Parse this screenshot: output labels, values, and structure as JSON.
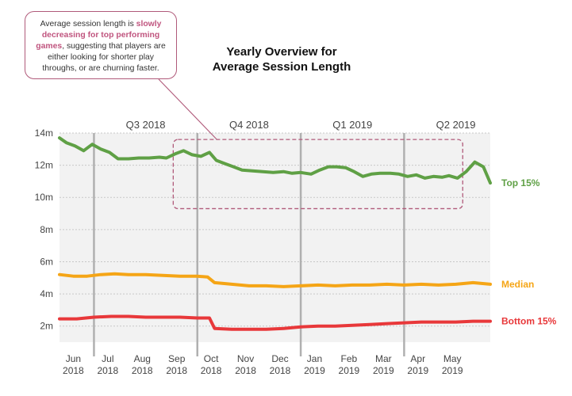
{
  "callout": {
    "prefix": "Average session length is ",
    "highlight": "slowly decreasing for top performing games",
    "suffix": ", suggesting that players are either looking for shorter play throughs, or are churning faster."
  },
  "title_line1": "Yearly Overview for",
  "title_line2": "Average Session Length",
  "colors": {
    "top": "#5fa045",
    "median": "#f5a516",
    "bottom": "#e8383a",
    "callout": "#b05a7a",
    "plot_bg": "#f2f2f2"
  },
  "chart_data": {
    "type": "line",
    "title": "Yearly Overview for Average Session Length",
    "xlabel": "",
    "ylabel": "",
    "ylim": [
      1,
      14
    ],
    "y_ticks": [
      {
        "value": 14,
        "label": "14m"
      },
      {
        "value": 12,
        "label": "12m"
      },
      {
        "value": 10,
        "label": "10m"
      },
      {
        "value": 8,
        "label": "8m"
      },
      {
        "value": 6,
        "label": "6m"
      },
      {
        "value": 4,
        "label": "4m"
      },
      {
        "value": 2,
        "label": "2m"
      }
    ],
    "x_range": [
      0,
      12.5
    ],
    "month_ticks": [
      {
        "x": 0.4,
        "month": "Jun",
        "year": "2018"
      },
      {
        "x": 1.4,
        "month": "Jul",
        "year": "2018"
      },
      {
        "x": 2.4,
        "month": "Aug",
        "year": "2018"
      },
      {
        "x": 3.4,
        "month": "Sep",
        "year": "2018"
      },
      {
        "x": 4.4,
        "month": "Oct",
        "year": "2018"
      },
      {
        "x": 5.4,
        "month": "Nov",
        "year": "2018"
      },
      {
        "x": 6.4,
        "month": "Dec",
        "year": "2018"
      },
      {
        "x": 7.4,
        "month": "Jan",
        "year": "2019"
      },
      {
        "x": 8.4,
        "month": "Feb",
        "year": "2019"
      },
      {
        "x": 9.4,
        "month": "Mar",
        "year": "2019"
      },
      {
        "x": 10.4,
        "month": "Apr",
        "year": "2019"
      },
      {
        "x": 11.4,
        "month": "May",
        "year": "2019"
      }
    ],
    "quarters": [
      {
        "label": "Q3 2018",
        "center": 2.5
      },
      {
        "label": "Q4 2018",
        "center": 5.5
      },
      {
        "label": "Q1 2019",
        "center": 8.5
      },
      {
        "label": "Q2 2019",
        "center": 11.5
      }
    ],
    "quarter_boundaries": [
      1,
      4,
      7,
      10
    ],
    "highlight_box": {
      "x": [
        3.3,
        11.7
      ],
      "y": [
        9.3,
        13.6
      ]
    },
    "grid": true,
    "series": [
      {
        "name": "Top 15%",
        "key": "top",
        "points": [
          [
            0,
            13.7
          ],
          [
            0.2,
            13.4
          ],
          [
            0.45,
            13.2
          ],
          [
            0.7,
            12.9
          ],
          [
            0.95,
            13.3
          ],
          [
            1.2,
            13.0
          ],
          [
            1.45,
            12.8
          ],
          [
            1.7,
            12.4
          ],
          [
            2,
            12.4
          ],
          [
            2.3,
            12.45
          ],
          [
            2.6,
            12.45
          ],
          [
            2.9,
            12.5
          ],
          [
            3.1,
            12.45
          ],
          [
            3.35,
            12.7
          ],
          [
            3.6,
            12.9
          ],
          [
            3.85,
            12.65
          ],
          [
            4.1,
            12.55
          ],
          [
            4.35,
            12.8
          ],
          [
            4.55,
            12.3
          ],
          [
            4.8,
            12.1
          ],
          [
            5.05,
            11.9
          ],
          [
            5.3,
            11.7
          ],
          [
            5.6,
            11.65
          ],
          [
            5.9,
            11.6
          ],
          [
            6.2,
            11.55
          ],
          [
            6.5,
            11.6
          ],
          [
            6.75,
            11.5
          ],
          [
            7,
            11.55
          ],
          [
            7.3,
            11.45
          ],
          [
            7.55,
            11.7
          ],
          [
            7.8,
            11.9
          ],
          [
            8.05,
            11.9
          ],
          [
            8.3,
            11.85
          ],
          [
            8.55,
            11.6
          ],
          [
            8.8,
            11.3
          ],
          [
            9.05,
            11.45
          ],
          [
            9.3,
            11.5
          ],
          [
            9.6,
            11.5
          ],
          [
            9.85,
            11.45
          ],
          [
            10.1,
            11.3
          ],
          [
            10.35,
            11.4
          ],
          [
            10.6,
            11.2
          ],
          [
            10.85,
            11.3
          ],
          [
            11.1,
            11.25
          ],
          [
            11.3,
            11.35
          ],
          [
            11.55,
            11.2
          ],
          [
            11.8,
            11.6
          ],
          [
            12.05,
            12.2
          ],
          [
            12.3,
            11.9
          ],
          [
            12.5,
            10.9
          ]
        ]
      },
      {
        "name": "Median",
        "key": "median",
        "points": [
          [
            0,
            5.2
          ],
          [
            0.4,
            5.1
          ],
          [
            0.8,
            5.1
          ],
          [
            1.2,
            5.2
          ],
          [
            1.6,
            5.25
          ],
          [
            2,
            5.2
          ],
          [
            2.5,
            5.2
          ],
          [
            3,
            5.15
          ],
          [
            3.5,
            5.1
          ],
          [
            4,
            5.1
          ],
          [
            4.3,
            5.05
          ],
          [
            4.5,
            4.7
          ],
          [
            5,
            4.6
          ],
          [
            5.5,
            4.5
          ],
          [
            6,
            4.5
          ],
          [
            6.5,
            4.45
          ],
          [
            7,
            4.5
          ],
          [
            7.5,
            4.55
          ],
          [
            8,
            4.5
          ],
          [
            8.5,
            4.55
          ],
          [
            9,
            4.55
          ],
          [
            9.5,
            4.6
          ],
          [
            10,
            4.55
          ],
          [
            10.5,
            4.6
          ],
          [
            11,
            4.55
          ],
          [
            11.5,
            4.6
          ],
          [
            12,
            4.7
          ],
          [
            12.5,
            4.6
          ]
        ]
      },
      {
        "name": "Bottom 15%",
        "key": "bottom",
        "points": [
          [
            0,
            2.45
          ],
          [
            0.5,
            2.45
          ],
          [
            1,
            2.55
          ],
          [
            1.5,
            2.6
          ],
          [
            2,
            2.6
          ],
          [
            2.5,
            2.55
          ],
          [
            3,
            2.55
          ],
          [
            3.5,
            2.55
          ],
          [
            4,
            2.5
          ],
          [
            4.35,
            2.5
          ],
          [
            4.5,
            1.85
          ],
          [
            5,
            1.8
          ],
          [
            5.5,
            1.8
          ],
          [
            6,
            1.8
          ],
          [
            6.5,
            1.85
          ],
          [
            7,
            1.95
          ],
          [
            7.5,
            2.0
          ],
          [
            8,
            2.0
          ],
          [
            8.5,
            2.05
          ],
          [
            9,
            2.1
          ],
          [
            9.5,
            2.15
          ],
          [
            10,
            2.2
          ],
          [
            10.5,
            2.25
          ],
          [
            11,
            2.25
          ],
          [
            11.5,
            2.25
          ],
          [
            12,
            2.3
          ],
          [
            12.5,
            2.3
          ]
        ]
      }
    ]
  }
}
